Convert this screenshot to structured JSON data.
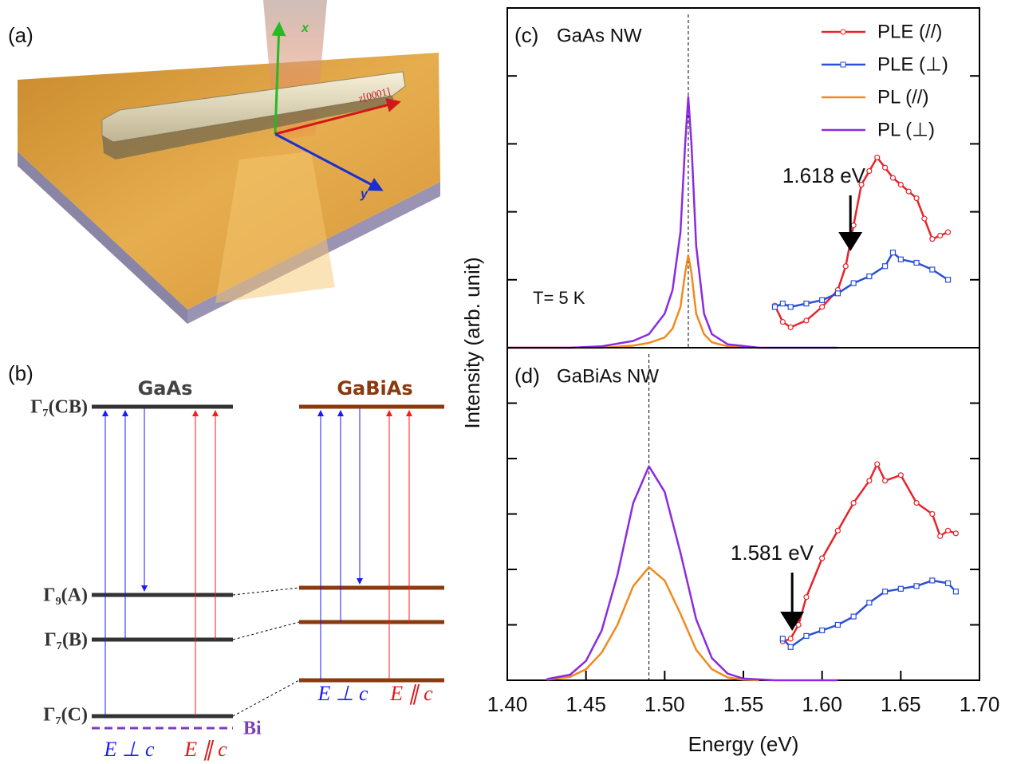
{
  "panel_a": {
    "label": "(a)",
    "axis_x": "x",
    "axis_y": "y",
    "axis_z": "z[0001]"
  },
  "panel_b": {
    "label": "(b)",
    "left_material": "GaAs",
    "right_material": "GaBiAs",
    "levels": [
      "Γ₇(CB)",
      "Γ₉(A)",
      "Γ₇(B)",
      "Γ₇(C)"
    ],
    "bi_level": "Bi",
    "perp_label": "E ⊥ c",
    "par_label": "E ∥ c"
  },
  "chart_data": [
    {
      "type": "line",
      "panel_label": "(c)",
      "title": "GaAs NW",
      "note": "T= 5 K",
      "ylabel": "Intensity (arb. unit)",
      "xlim": [
        1.4,
        1.7
      ],
      "ylim": [
        0,
        5
      ],
      "yticks": [
        1,
        2,
        3,
        4
      ],
      "vline": 1.515,
      "legend": "upper right",
      "annotation": {
        "text": "1.618 eV",
        "x": 1.618
      },
      "series": [
        {
          "name": "PLE (//)",
          "color": "#e8232a",
          "marker": "circle",
          "x": [
            1.57,
            1.575,
            1.58,
            1.59,
            1.6,
            1.61,
            1.615,
            1.62,
            1.625,
            1.63,
            1.635,
            1.64,
            1.645,
            1.65,
            1.655,
            1.66,
            1.665,
            1.67,
            1.675,
            1.68
          ],
          "values": [
            0.62,
            0.38,
            0.3,
            0.4,
            0.6,
            0.85,
            1.2,
            1.8,
            2.4,
            2.6,
            2.8,
            2.65,
            2.5,
            2.4,
            2.3,
            2.2,
            1.9,
            1.6,
            1.65,
            1.7
          ]
        },
        {
          "name": "PLE (⊥)",
          "color": "#2a4fd6",
          "marker": "square",
          "x": [
            1.57,
            1.575,
            1.58,
            1.59,
            1.6,
            1.61,
            1.62,
            1.63,
            1.64,
            1.645,
            1.65,
            1.66,
            1.67,
            1.68
          ],
          "values": [
            0.6,
            0.65,
            0.6,
            0.65,
            0.7,
            0.8,
            0.95,
            1.05,
            1.2,
            1.4,
            1.3,
            1.25,
            1.15,
            1.0
          ]
        },
        {
          "name": "PL (//)",
          "color": "#f08a1e",
          "x": [
            1.4,
            1.46,
            1.48,
            1.49,
            1.5,
            1.505,
            1.51,
            1.513,
            1.515,
            1.517,
            1.52,
            1.525,
            1.53,
            1.54,
            1.56
          ],
          "values": [
            0,
            0,
            0.03,
            0.07,
            0.15,
            0.28,
            0.6,
            1.1,
            1.36,
            1.1,
            0.5,
            0.2,
            0.08,
            0.02,
            0
          ]
        },
        {
          "name": "PL (⊥)",
          "color": "#8a2be2",
          "x": [
            1.4,
            1.44,
            1.46,
            1.48,
            1.49,
            1.5,
            1.505,
            1.51,
            1.513,
            1.515,
            1.517,
            1.52,
            1.525,
            1.53,
            1.54,
            1.56,
            1.61
          ],
          "values": [
            0,
            0,
            0.02,
            0.1,
            0.2,
            0.5,
            0.85,
            1.7,
            3.0,
            3.69,
            3.0,
            1.5,
            0.5,
            0.2,
            0.05,
            0,
            0
          ]
        }
      ]
    },
    {
      "type": "line",
      "panel_label": "(d)",
      "title": "GaBiAs NW",
      "xlabel": "Energy (eV)",
      "xlim": [
        1.4,
        1.7
      ],
      "xticks": [
        {
          "value": 1.4,
          "label": "1.40"
        },
        1.45,
        {
          "value": 1.5,
          "label": "1.50"
        },
        1.55,
        {
          "value": 1.6,
          "label": "1.60"
        },
        1.65,
        {
          "value": 1.7,
          "label": "1.70"
        }
      ],
      "ylim": [
        0,
        6
      ],
      "yticks": [
        1,
        2,
        3,
        4,
        5
      ],
      "vline": 1.49,
      "annotation": {
        "text": "1.581 eV",
        "x": 1.581
      },
      "series": [
        {
          "name": "PLE (//)",
          "color": "#e8232a",
          "marker": "circle",
          "x": [
            1.575,
            1.58,
            1.585,
            1.59,
            1.6,
            1.61,
            1.62,
            1.63,
            1.635,
            1.64,
            1.65,
            1.66,
            1.67,
            1.675,
            1.68,
            1.685
          ],
          "values": [
            0.7,
            0.75,
            1.0,
            1.5,
            2.2,
            2.7,
            3.2,
            3.6,
            3.9,
            3.6,
            3.7,
            3.2,
            3.0,
            2.6,
            2.7,
            2.65
          ]
        },
        {
          "name": "PLE (⊥)",
          "color": "#2a4fd6",
          "marker": "square",
          "x": [
            1.575,
            1.58,
            1.59,
            1.6,
            1.61,
            1.62,
            1.63,
            1.64,
            1.65,
            1.66,
            1.67,
            1.68,
            1.685
          ],
          "values": [
            0.75,
            0.6,
            0.8,
            0.9,
            1.0,
            1.15,
            1.4,
            1.6,
            1.65,
            1.7,
            1.8,
            1.75,
            1.6
          ]
        },
        {
          "name": "PL (//)",
          "color": "#f08a1e",
          "x": [
            1.425,
            1.44,
            1.45,
            1.46,
            1.47,
            1.48,
            1.49,
            1.5,
            1.51,
            1.52,
            1.53,
            1.54,
            1.55,
            1.56
          ],
          "values": [
            0.01,
            0.06,
            0.2,
            0.5,
            1.0,
            1.7,
            2.04,
            1.8,
            1.2,
            0.55,
            0.2,
            0.05,
            0.01,
            0
          ]
        },
        {
          "name": "PL (⊥)",
          "color": "#8a2be2",
          "x": [
            1.425,
            1.44,
            1.45,
            1.46,
            1.47,
            1.48,
            1.49,
            1.5,
            1.51,
            1.52,
            1.53,
            1.54,
            1.55,
            1.57,
            1.61
          ],
          "values": [
            0.02,
            0.1,
            0.35,
            0.9,
            1.9,
            3.2,
            3.86,
            3.4,
            2.3,
            1.1,
            0.4,
            0.12,
            0.03,
            0,
            0
          ]
        }
      ]
    }
  ]
}
